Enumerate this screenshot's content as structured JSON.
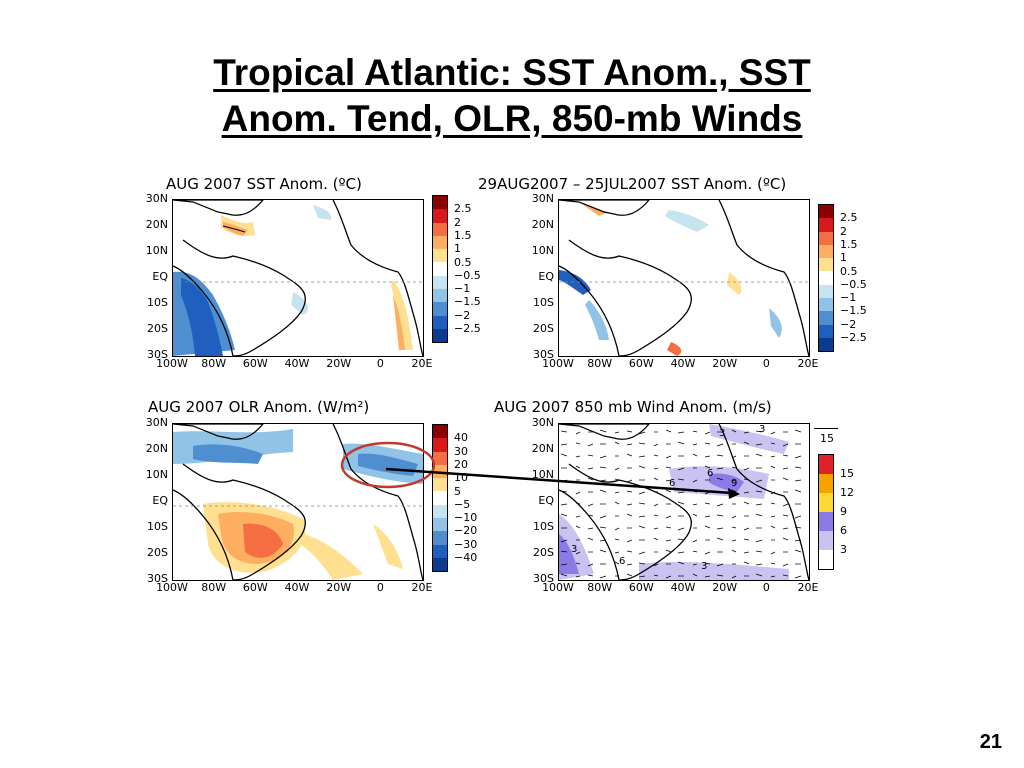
{
  "slide": {
    "title_line1": "Tropical Atlantic: SST Anom., SST",
    "title_line2": "Anom. Tend, OLR, 850-mb Winds",
    "page_number": "21"
  },
  "axes": {
    "lat_labels": [
      "30N",
      "20N",
      "10N",
      "EQ",
      "10S",
      "20S",
      "30S"
    ],
    "lon_labels": [
      "100W",
      "80W",
      "60W",
      "40W",
      "20W",
      "0",
      "20E"
    ]
  },
  "panels": {
    "sst": {
      "title": "AUG 2007 SST Anom. (ºC)",
      "colorbar_labels": [
        "2.5",
        "2",
        "1.5",
        "1",
        "0.5",
        "−0.5",
        "−1",
        "−1.5",
        "−2",
        "−2.5"
      ],
      "colors": [
        "#8b0000",
        "#d7191c",
        "#f46d43",
        "#fdae61",
        "#fee090",
        "#ffffff",
        "#c6e4f0",
        "#91c3e6",
        "#4f8fd0",
        "#1f5fbf",
        "#0b3a8f"
      ]
    },
    "tend": {
      "title": "29AUG2007 – 25JUL2007 SST Anom. (ºC)",
      "colorbar_labels": [
        "2.5",
        "2",
        "1.5",
        "1",
        "0.5",
        "−0.5",
        "−1",
        "−1.5",
        "−2",
        "−2.5"
      ],
      "colors": [
        "#8b0000",
        "#d7191c",
        "#f46d43",
        "#fdae61",
        "#fee090",
        "#ffffff",
        "#c6e4f0",
        "#91c3e6",
        "#4f8fd0",
        "#1f5fbf",
        "#0b3a8f"
      ]
    },
    "olr": {
      "title": "AUG 2007 OLR Anom. (W/m²)",
      "colorbar_labels": [
        "40",
        "30",
        "20",
        "10",
        "5",
        "−5",
        "−10",
        "−20",
        "−30",
        "−40"
      ],
      "colors": [
        "#8b0000",
        "#d7191c",
        "#f46d43",
        "#fdae61",
        "#fee090",
        "#ffffff",
        "#c6e4f0",
        "#91c3e6",
        "#4f8fd0",
        "#1f5fbf",
        "#0b3a8f"
      ]
    },
    "wind": {
      "title": "AUG 2007 850 mb Wind Anom. (m/s)",
      "colorbar_labels": [
        "15",
        "12",
        "9",
        "6",
        "3"
      ],
      "colors": [
        "#e0202a",
        "#f5a300",
        "#fdd835",
        "#8b7be6",
        "#c9c3f2",
        "#ffffff"
      ],
      "ref_vector_label": "15",
      "contour_labels": [
        "3",
        "3",
        "6",
        "9",
        "6",
        "3",
        "6",
        "3"
      ]
    }
  }
}
